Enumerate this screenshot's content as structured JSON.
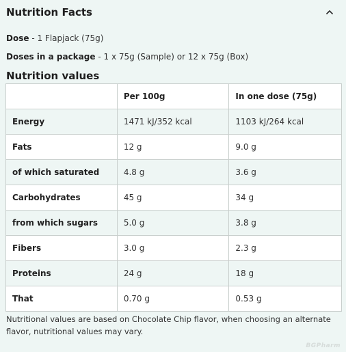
{
  "header": {
    "title": "Nutrition Facts",
    "toggle_icon": "chevron-up-icon"
  },
  "dose": {
    "label": "Dose",
    "sep": " - ",
    "value": "1 Flapjack (75g)"
  },
  "doses_per_package": {
    "label": "Doses in a package",
    "sep": " - ",
    "value": "1 x 75g (Sample) or 12 x 75g (Box)"
  },
  "section_title": "Nutrition values",
  "table": {
    "headers": [
      "",
      "Per 100g",
      "In one dose (75g)"
    ],
    "rows": [
      [
        "Energy",
        "1471 kJ/352 kcal",
        "1103 kJ/264 kcal"
      ],
      [
        "Fats",
        "12 g",
        "9.0 g"
      ],
      [
        "of which saturated",
        "4.8 g",
        "3.6 g"
      ],
      [
        "Carbohydrates",
        "45 g",
        "34 g"
      ],
      [
        "from which sugars",
        "5.0 g",
        "3.8 g"
      ],
      [
        "Fibers",
        "3.0 g",
        "2.3 g"
      ],
      [
        "Proteins",
        "24 g",
        "18 g"
      ],
      [
        "That",
        "0.70 g",
        "0.53 g"
      ]
    ]
  },
  "note": "Nutritional values are based on Chocolate Chip flavor, when choosing an alternate flavor, nutritional values may vary.",
  "watermark": "BGPharm"
}
